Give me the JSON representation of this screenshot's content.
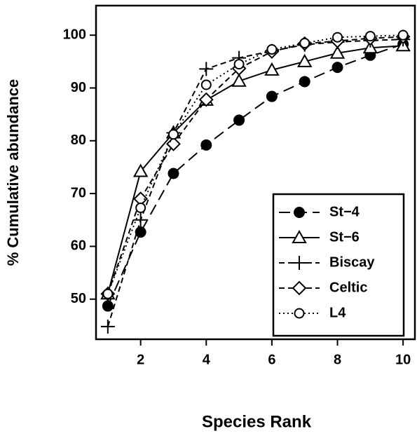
{
  "chart_data": {
    "type": "line",
    "xlabel": "Species Rank",
    "ylabel": "% Cumulative abundance",
    "x": [
      1,
      2,
      3,
      4,
      5,
      6,
      7,
      8,
      9,
      10
    ],
    "xlim": [
      0.64,
      10.36
    ],
    "xticks": [
      2,
      4,
      6,
      8,
      10
    ],
    "ylim": [
      42.4,
      105.6
    ],
    "yticks": [
      50,
      60,
      70,
      80,
      90,
      100
    ],
    "grid": false,
    "legend": "lower right",
    "series": [
      {
        "name": "St−4",
        "color": "#000000",
        "marker": "filled-circle",
        "dash": "16 8",
        "values": [
          48.7,
          62.7,
          73.8,
          79.2,
          83.9,
          88.4,
          91.2,
          93.9,
          96.2,
          98.3
        ]
      },
      {
        "name": "St−6",
        "color": "#000000",
        "marker": "triangle",
        "dash": "none",
        "values": [
          51,
          74.2,
          81.5,
          87.7,
          91.3,
          93.4,
          95,
          96.6,
          97.6,
          98
        ]
      },
      {
        "name": "Biscay",
        "color": "#000000",
        "marker": "plus",
        "dash": "8 5",
        "values": [
          44.8,
          65,
          81.5,
          93.6,
          95.7,
          97,
          98.2,
          98.7,
          99,
          99.2
        ]
      },
      {
        "name": "Celtic",
        "color": "#000000",
        "marker": "diamond",
        "dash": "8 5",
        "values": [
          51,
          69,
          79.4,
          87.8,
          93.7,
          96.9,
          98.4,
          98.9,
          99.4,
          99.7
        ]
      },
      {
        "name": "L4",
        "color": "#000000",
        "marker": "circle",
        "dash": "2 4",
        "values": [
          51,
          67.3,
          81.2,
          90.6,
          94.5,
          97.3,
          98.5,
          99.6,
          99.8,
          100
        ]
      }
    ]
  }
}
